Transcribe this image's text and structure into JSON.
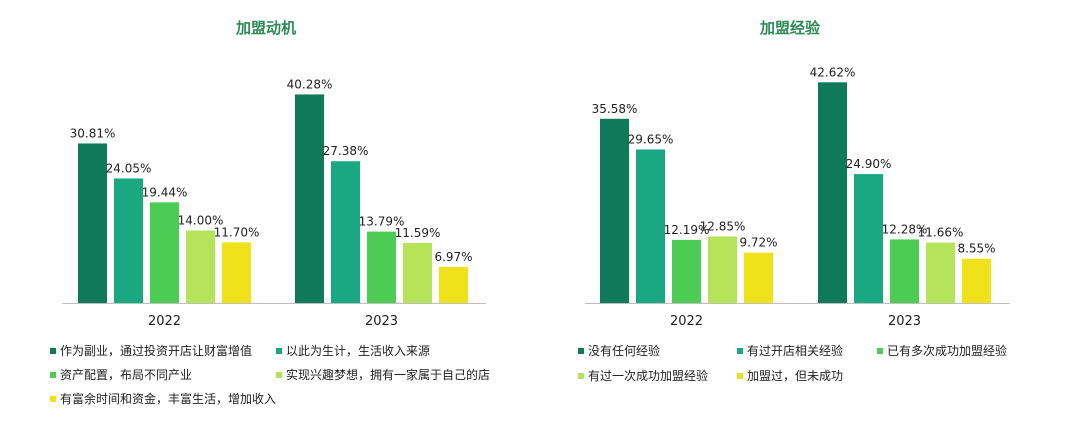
{
  "chart_data": [
    {
      "type": "bar",
      "title": "加盟动机",
      "categories": [
        "2022",
        "2023"
      ],
      "series": [
        {
          "name": "作为副业，通过投资开店让财富增值",
          "values": [
            30.81,
            40.28
          ],
          "labels": [
            "30.81%",
            "40.28%"
          ],
          "color": "#0f7a58"
        },
        {
          "name": "以此为生计，生活收入来源",
          "values": [
            24.05,
            27.38
          ],
          "labels": [
            "24.05%",
            "27.38%"
          ],
          "color": "#1aa882"
        },
        {
          "name": "资产配置，布局不同产业",
          "values": [
            19.44,
            13.79
          ],
          "labels": [
            "19.44%",
            "13.79%"
          ],
          "color": "#4ccc52"
        },
        {
          "name": "实现兴趣梦想，拥有一家属于自己的店",
          "values": [
            14.0,
            11.59
          ],
          "labels": [
            "14.00%",
            "11.59%"
          ],
          "color": "#b5e35a"
        },
        {
          "name": "有富余时间和资金，丰富生活，增加收入",
          "values": [
            11.7,
            6.97
          ],
          "labels": [
            "11.70%",
            "6.97%"
          ],
          "color": "#f0e21a"
        }
      ],
      "ylim": [
        0,
        45
      ],
      "legend": "bottom"
    },
    {
      "type": "bar",
      "title": "加盟经验",
      "categories": [
        "2022",
        "2023"
      ],
      "series": [
        {
          "name": "没有任何经验",
          "values": [
            35.58,
            42.62
          ],
          "labels": [
            "35.58%",
            "42.62%"
          ],
          "color": "#0f7a58"
        },
        {
          "name": "有过开店相关经验",
          "values": [
            29.65,
            24.9
          ],
          "labels": [
            "29.65%",
            "24.90%"
          ],
          "color": "#1aa882"
        },
        {
          "name": "已有多次成功加盟经验",
          "values": [
            12.19,
            12.28
          ],
          "labels": [
            "12.19%",
            "12.28%"
          ],
          "color": "#4ccc52"
        },
        {
          "name": "有过一次成功加盟经验",
          "values": [
            12.85,
            11.66
          ],
          "labels": [
            "12.85%",
            "11.66%"
          ],
          "color": "#b5e35a"
        },
        {
          "name": "加盟过，但未成功",
          "values": [
            9.72,
            8.55
          ],
          "labels": [
            "9.72%",
            "8.55%"
          ],
          "color": "#f0e21a"
        }
      ],
      "ylim": [
        0,
        45
      ],
      "legend": "bottom"
    }
  ]
}
